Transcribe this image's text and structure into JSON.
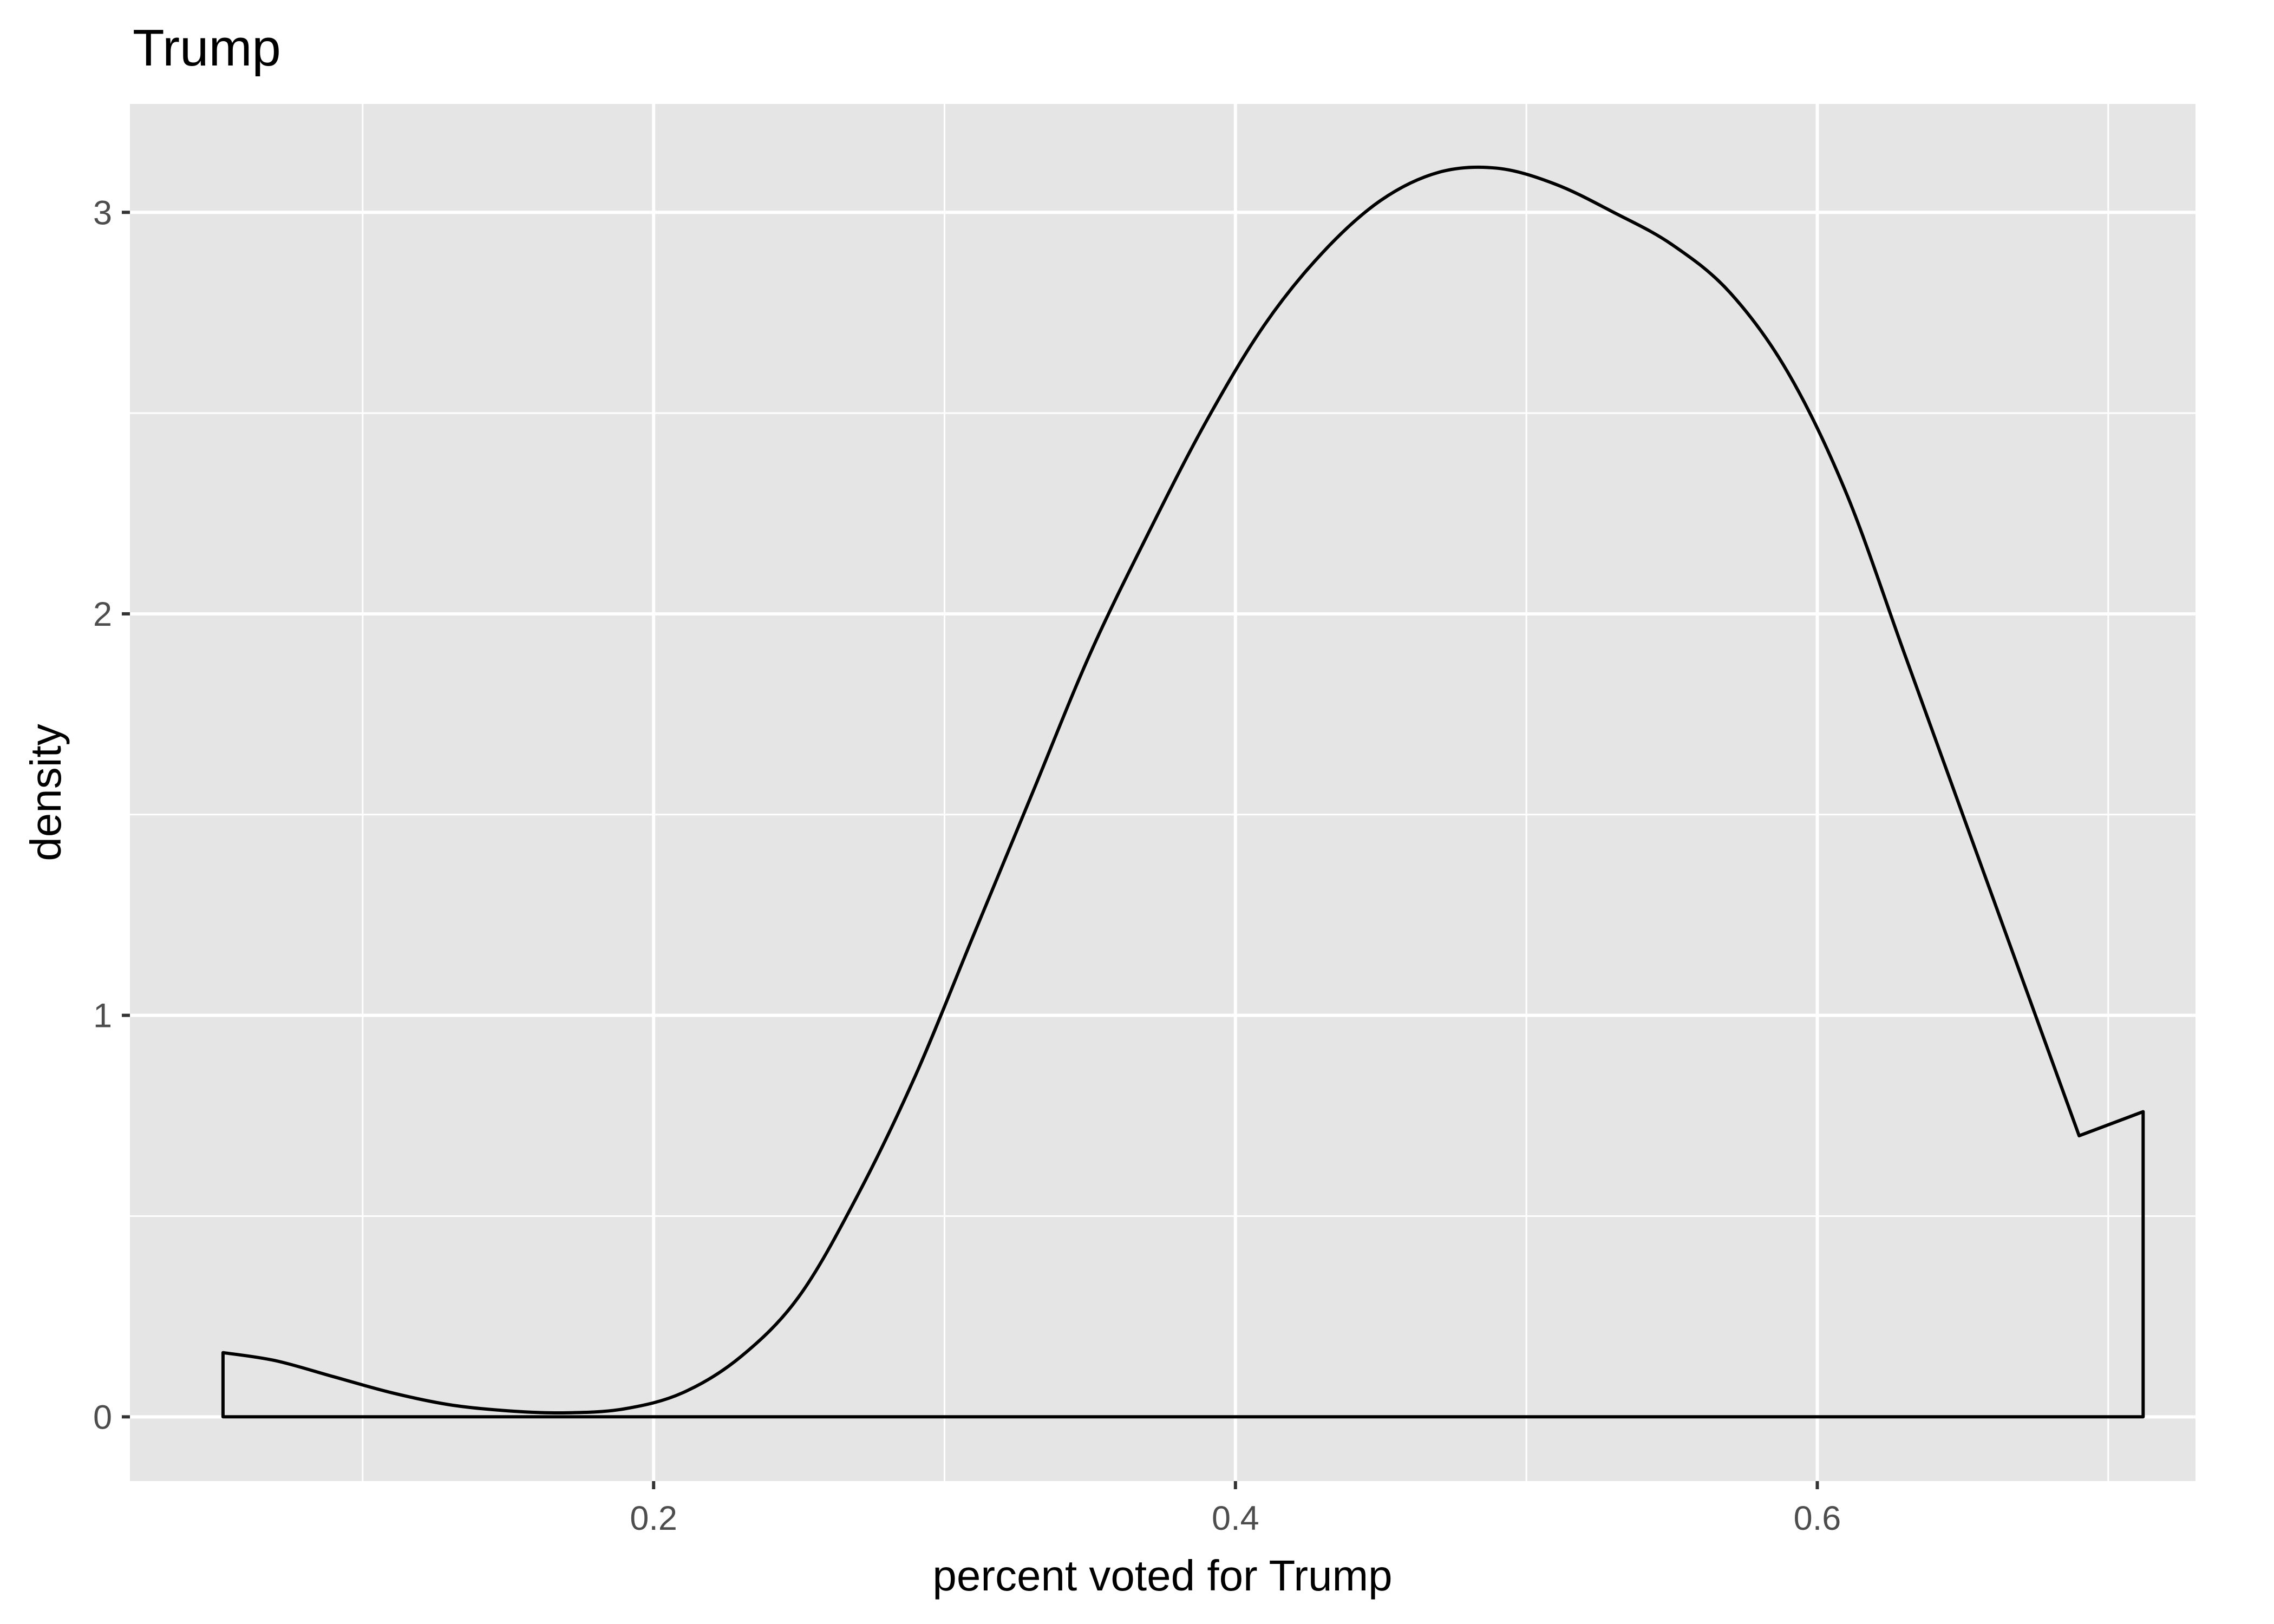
{
  "chart_data": {
    "type": "area",
    "title": "Trump",
    "xlabel": "percent voted for Trump",
    "ylabel": "density",
    "xlim": [
      0.02,
      0.73
    ],
    "ylim": [
      -0.16,
      3.27
    ],
    "x_ticks": [
      0.2,
      0.4,
      0.6
    ],
    "x_tick_labels": [
      "0.2",
      "0.4",
      "0.6"
    ],
    "y_ticks": [
      0,
      1,
      2,
      3
    ],
    "y_tick_labels": [
      "0",
      "1",
      "2",
      "3"
    ],
    "x_minor_ticks": [
      0.1,
      0.3,
      0.5,
      0.7
    ],
    "y_minor_ticks": [
      0.5,
      1.5,
      2.5
    ],
    "grid": true,
    "series": [
      {
        "x": [
          0.052,
          0.07,
          0.09,
          0.11,
          0.13,
          0.15,
          0.17,
          0.19,
          0.21,
          0.23,
          0.25,
          0.27,
          0.29,
          0.31,
          0.33,
          0.35,
          0.37,
          0.39,
          0.41,
          0.43,
          0.45,
          0.47,
          0.49,
          0.51,
          0.53,
          0.55,
          0.57,
          0.59,
          0.61,
          0.63,
          0.65,
          0.67,
          0.69,
          0.712
        ],
        "values": [
          0.16,
          0.14,
          0.1,
          0.06,
          0.03,
          0.015,
          0.01,
          0.02,
          0.06,
          0.15,
          0.3,
          0.55,
          0.85,
          1.2,
          1.55,
          1.9,
          2.2,
          2.48,
          2.72,
          2.9,
          3.03,
          3.1,
          3.11,
          3.07,
          3.0,
          2.92,
          2.8,
          2.6,
          2.3,
          1.9,
          1.5,
          1.1,
          0.7,
          0.76
        ]
      }
    ],
    "colors": {
      "panel_background": "#e5e5e5",
      "grid": "#ffffff",
      "line": "#000000",
      "tick": "#333333"
    }
  }
}
